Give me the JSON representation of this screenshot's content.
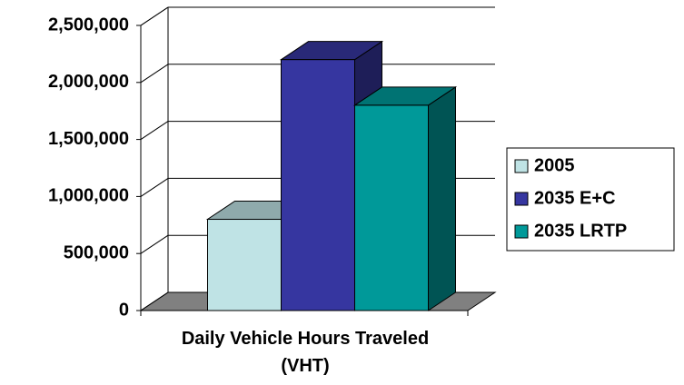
{
  "chart_data": {
    "type": "bar3d",
    "categories": [
      "Daily Vehicle Hours Traveled (VHT)"
    ],
    "series": [
      {
        "name": "2005",
        "color": "#bfe3e5",
        "values": [
          800000
        ]
      },
      {
        "name": "2035 E+C",
        "color": "#3636a0",
        "values": [
          2200000
        ]
      },
      {
        "name": "2035 LRTP",
        "color": "#009999",
        "values": [
          1800000
        ]
      }
    ],
    "ylim": [
      0,
      2500000
    ],
    "yticks": [
      0,
      {
        "value": 500000,
        "label": "500,000"
      },
      {
        "value": 1000000,
        "label": "1,000,000"
      },
      {
        "value": 1500000,
        "label": "1,500,000"
      },
      {
        "value": 2000000,
        "label": "2,000,000"
      },
      {
        "value": 2500000,
        "label": "2,500,000"
      }
    ],
    "grid": true,
    "legend": "right"
  }
}
